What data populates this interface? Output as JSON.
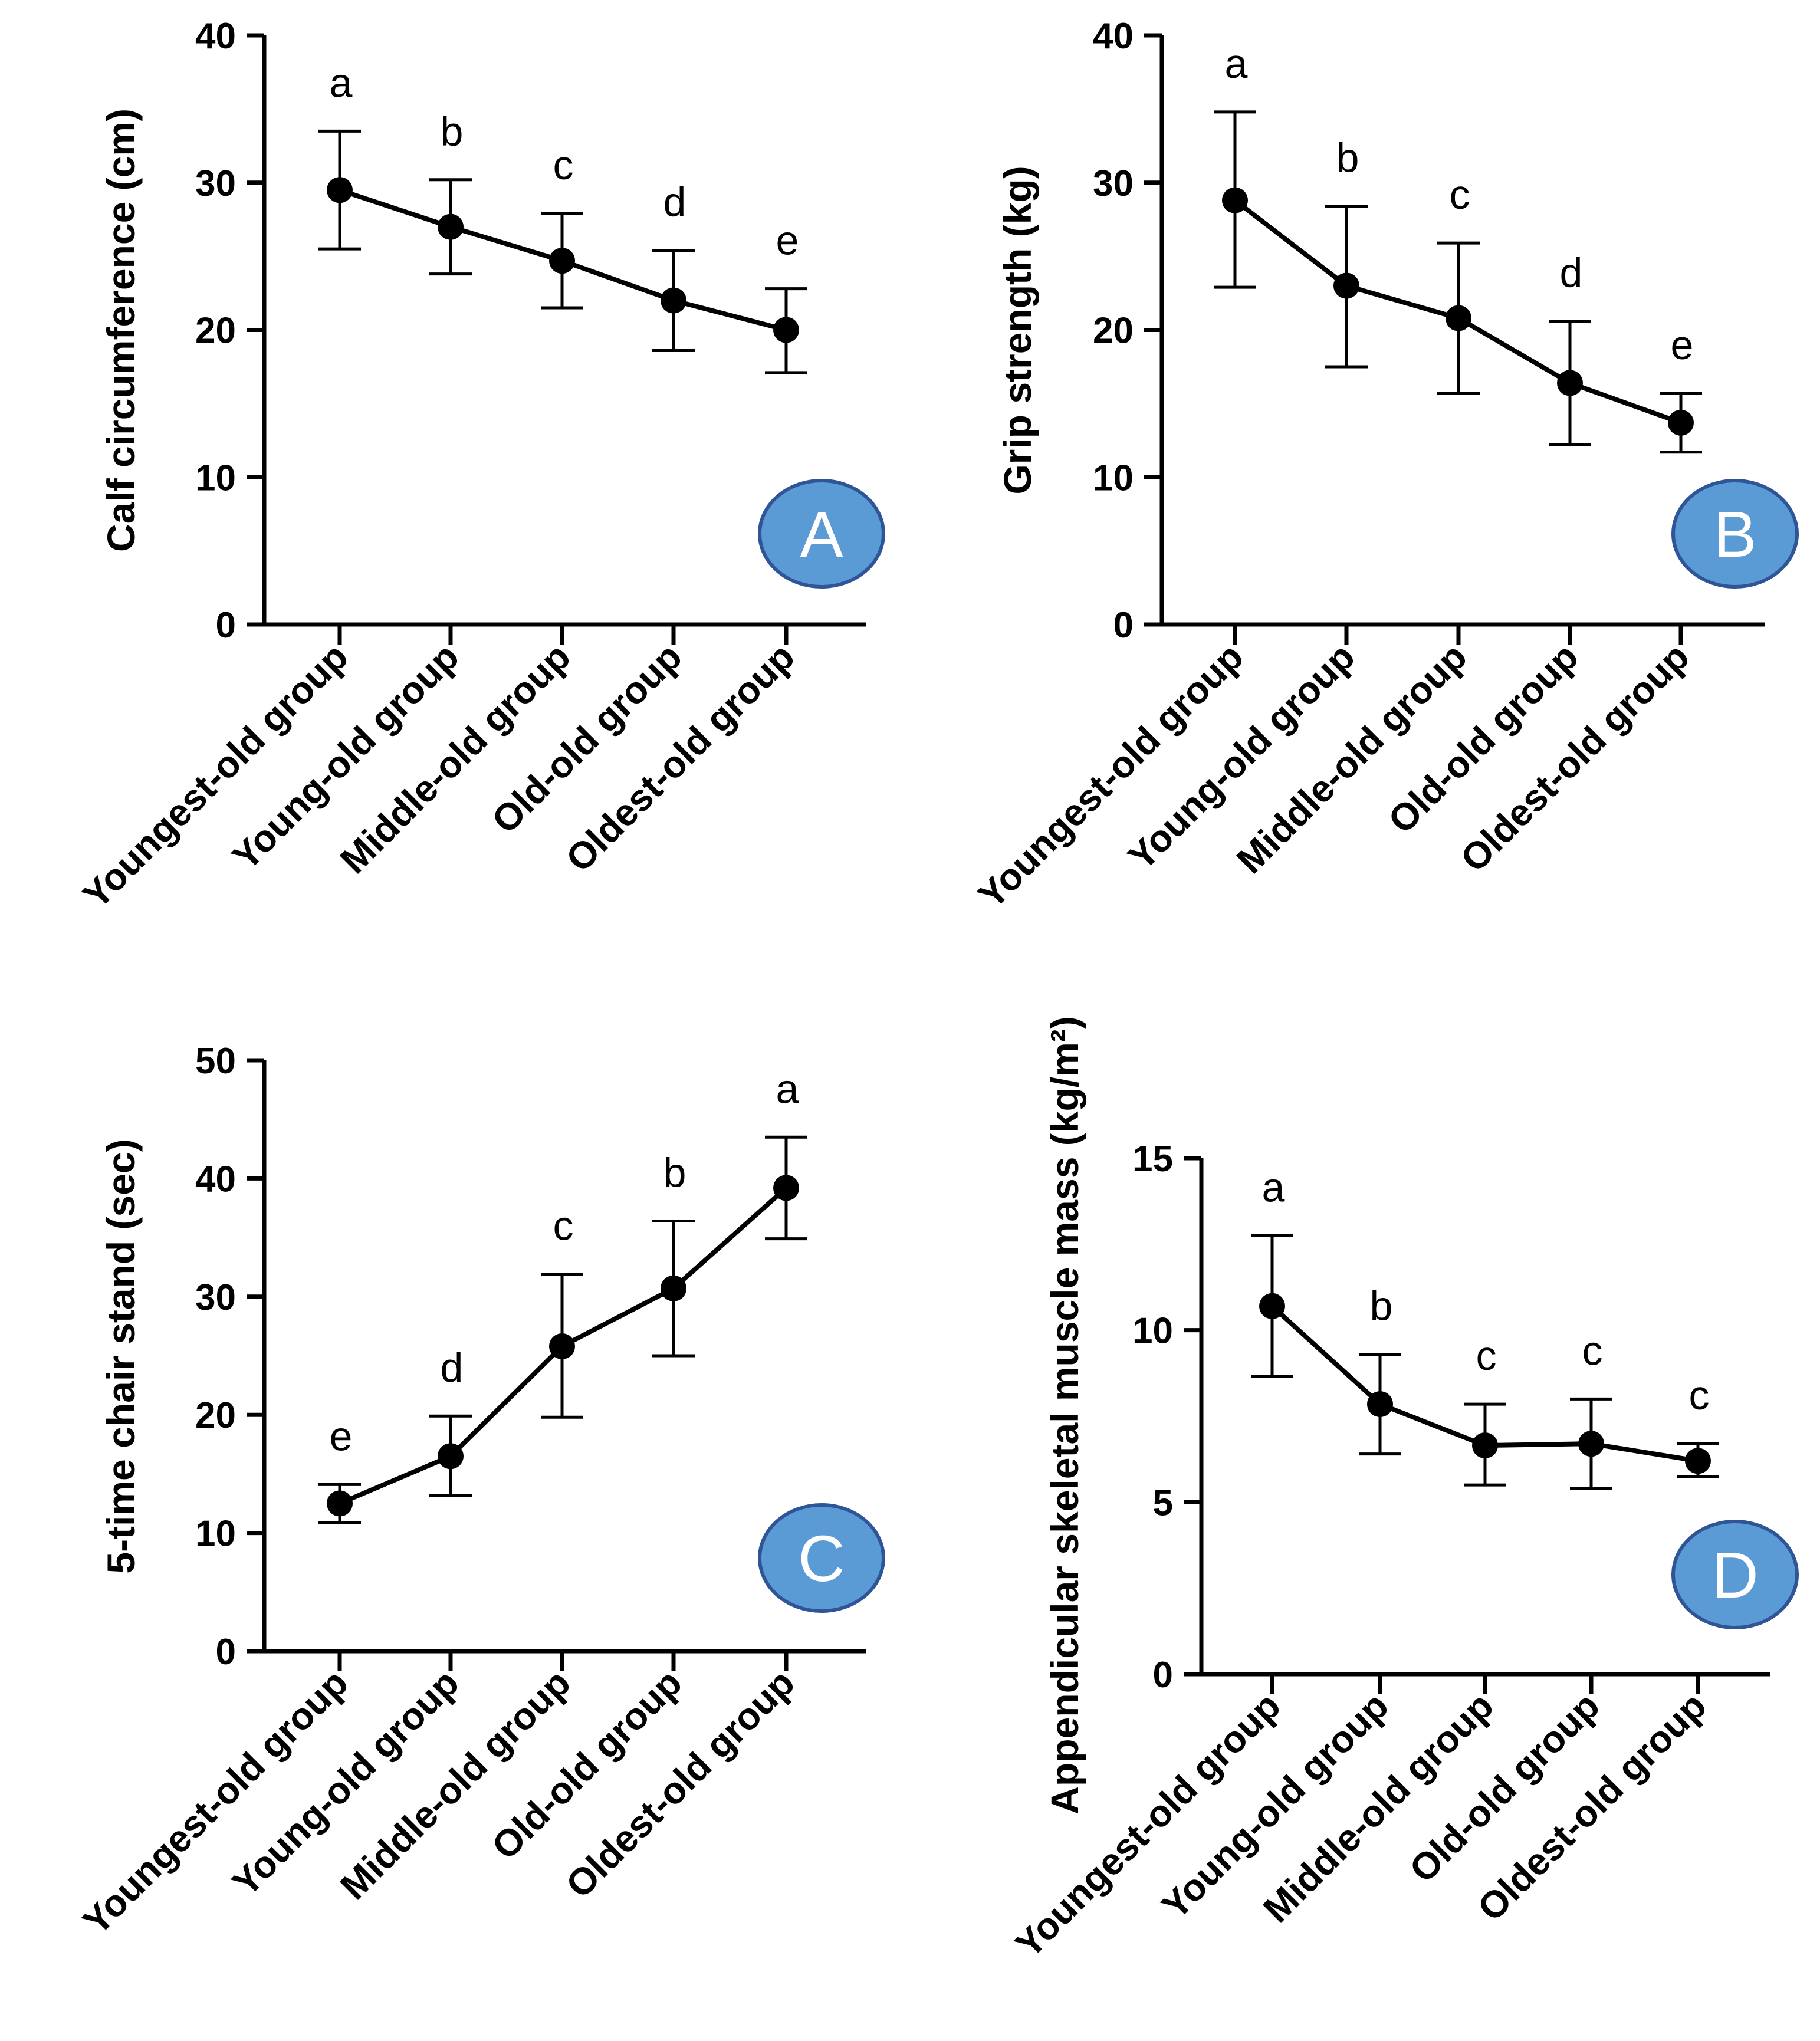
{
  "categories": [
    "Youngest-old group",
    "Young-old group",
    "Middle-old group",
    "Old-old group",
    "Oldest-old group"
  ],
  "colors": {
    "line": "#000000",
    "badge_fill": "#5b9bd5",
    "badge_stroke": "#2f5597",
    "badge_text": "#ffffff"
  },
  "chart_data": [
    {
      "panel": "A",
      "type": "line",
      "ylabel": "Calf circumference (cm)",
      "ylim": [
        0,
        40
      ],
      "yticks": [
        0,
        10,
        20,
        30,
        40
      ],
      "categories": [
        "Youngest-old group",
        "Young-old group",
        "Middle-old group",
        "Old-old group",
        "Oldest-old group"
      ],
      "values": [
        29.5,
        27.0,
        24.7,
        22.0,
        20.0
      ],
      "error_upper": [
        33.5,
        30.2,
        27.9,
        25.4,
        22.8
      ],
      "error_lower": [
        25.5,
        23.8,
        21.5,
        18.6,
        17.1
      ],
      "significance": [
        "a",
        "b",
        "c",
        "d",
        "e"
      ]
    },
    {
      "panel": "B",
      "type": "line",
      "ylabel": "Grip strength (kg)",
      "ylim": [
        0,
        40
      ],
      "yticks": [
        0,
        10,
        20,
        30,
        40
      ],
      "categories": [
        "Youngest-old group",
        "Young-old group",
        "Middle-old group",
        "Old-old group",
        "Oldest-old group"
      ],
      "values": [
        28.8,
        23.0,
        20.8,
        16.4,
        13.7
      ],
      "error_upper": [
        34.8,
        28.4,
        25.9,
        20.6,
        15.7
      ],
      "error_lower": [
        22.9,
        17.5,
        15.7,
        12.2,
        11.7
      ],
      "significance": [
        "a",
        "b",
        "c",
        "d",
        "e"
      ]
    },
    {
      "panel": "C",
      "type": "line",
      "ylabel": "5-time chair stand (sec)",
      "ylim": [
        0,
        50
      ],
      "yticks": [
        0,
        10,
        20,
        30,
        40,
        50
      ],
      "categories": [
        "Youngest-old group",
        "Young-old group",
        "Middle-old group",
        "Old-old group",
        "Oldest-old group"
      ],
      "values": [
        12.5,
        16.5,
        25.8,
        30.7,
        39.2
      ],
      "error_upper": [
        14.1,
        19.9,
        31.9,
        36.4,
        43.5
      ],
      "error_lower": [
        10.9,
        13.2,
        19.8,
        25.0,
        34.9
      ],
      "significance": [
        "e",
        "d",
        "c",
        "b",
        "a"
      ]
    },
    {
      "panel": "D",
      "type": "line",
      "ylabel": "Appendicular skeletal muscle mass (kg/m²)",
      "ylim": [
        0,
        15
      ],
      "yticks": [
        0,
        5,
        10,
        15
      ],
      "categories": [
        "Youngest-old group",
        "Young-old group",
        "Middle-old group",
        "Old-old group",
        "Oldest-old group"
      ],
      "values": [
        10.7,
        7.85,
        6.65,
        6.7,
        6.2
      ],
      "error_upper": [
        12.75,
        9.3,
        7.85,
        8.0,
        6.7
      ],
      "error_lower": [
        8.65,
        6.4,
        5.5,
        5.4,
        5.75
      ],
      "significance": [
        "a",
        "b",
        "c",
        "c",
        "c"
      ]
    }
  ]
}
